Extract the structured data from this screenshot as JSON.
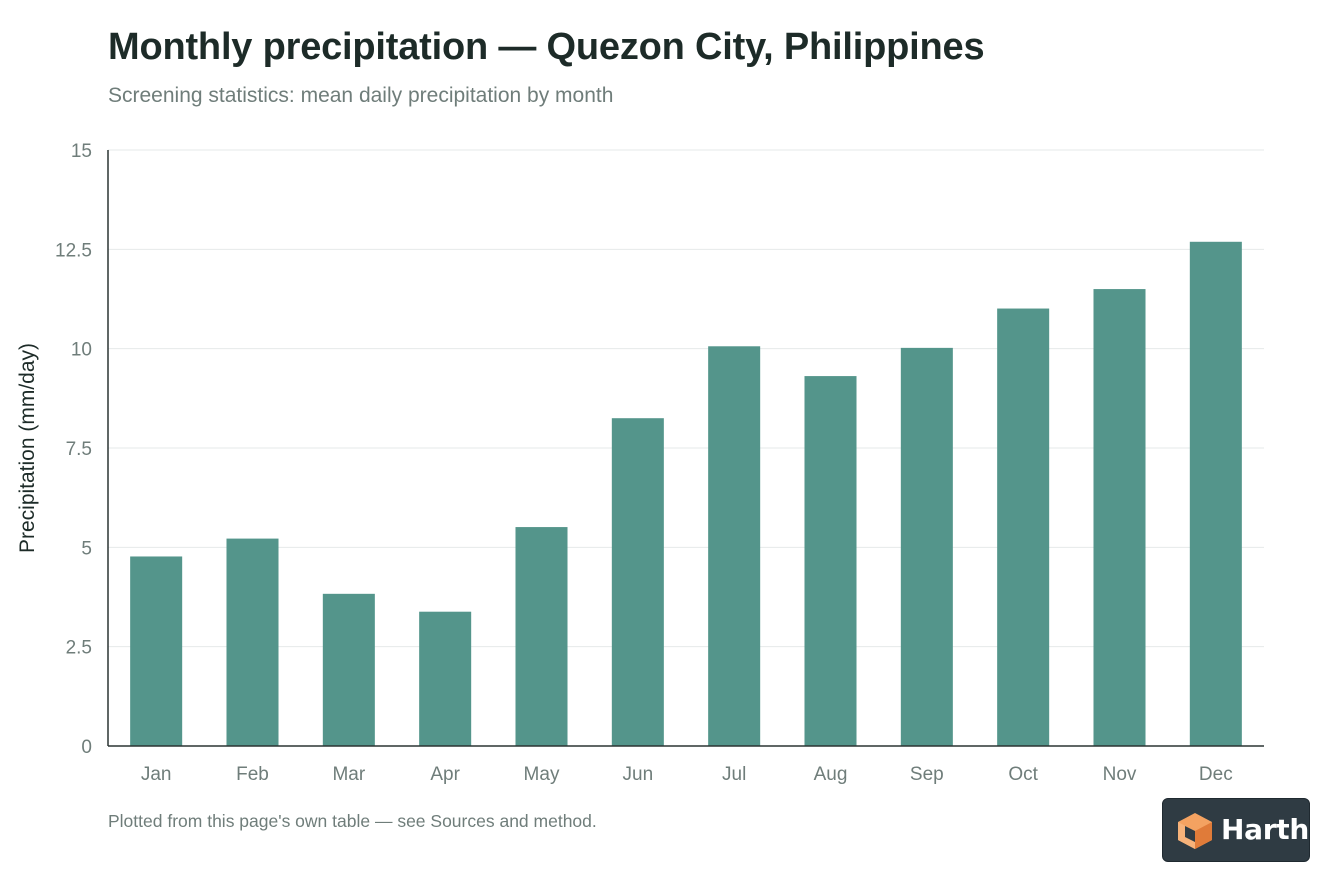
{
  "header": {
    "title": "Monthly precipitation — Quezon City, Philippines",
    "subtitle": "Screening statistics: mean daily precipitation by month"
  },
  "footer": {
    "note": "Plotted from this page's own table — see Sources and method."
  },
  "brand": {
    "name": "Harth",
    "logo_icon": "cube-logo-icon",
    "badge_color": "#2f3b43",
    "logo_color": "#f4a261"
  },
  "colors": {
    "bar": "#54958b",
    "grid": "#e6eaea",
    "axis": "#2b3533",
    "tick_text": "#6f7d7a"
  },
  "chart_data": {
    "type": "bar",
    "title": "Monthly precipitation — Quezon City, Philippines",
    "subtitle": "Screening statistics: mean daily precipitation by month",
    "xlabel": "",
    "ylabel": "Precipitation (mm/day)",
    "categories": [
      "Jan",
      "Feb",
      "Mar",
      "Apr",
      "May",
      "Jun",
      "Jul",
      "Aug",
      "Sep",
      "Oct",
      "Nov",
      "Dec"
    ],
    "values": [
      4.77,
      5.22,
      3.83,
      3.38,
      5.51,
      8.25,
      10.06,
      9.31,
      10.02,
      11.01,
      11.5,
      12.69
    ],
    "ylim": [
      0,
      15
    ],
    "yticks": [
      0,
      2.5,
      5,
      7.5,
      10,
      12.5,
      15
    ],
    "ytick_labels": [
      "0",
      "2.5",
      "5",
      "7.5",
      "10",
      "12.5",
      "15"
    ],
    "grid": true,
    "legend": "none"
  }
}
